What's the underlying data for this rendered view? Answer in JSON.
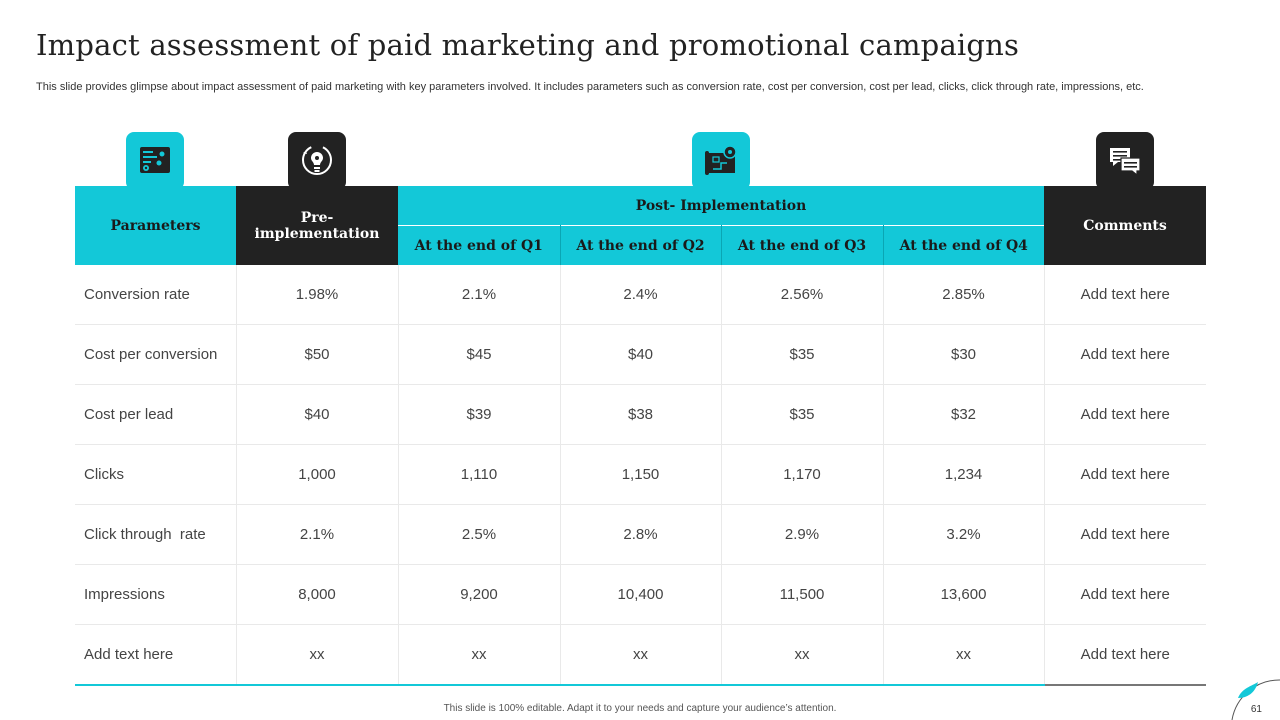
{
  "slide": {
    "title": "Impact assessment of paid marketing and promotional campaigns",
    "subtitle": "This slide provides glimpse about impact assessment of paid marketing with key parameters involved. It includes parameters such as conversion rate, cost per conversion, cost per lead, clicks, click through rate, impressions, etc.",
    "footer": "This slide is 100% editable.  Adapt it to your needs and capture your audience’s attention.",
    "page_number": "61"
  },
  "icons": [
    {
      "name": "settings-panel-icon",
      "color": "#13c8d8"
    },
    {
      "name": "lightbulb-gear-icon",
      "color": "#222222"
    },
    {
      "name": "blueprint-gear-icon",
      "color": "#13c8d8"
    },
    {
      "name": "chat-bubbles-icon",
      "color": "#222222"
    }
  ],
  "table": {
    "headers": {
      "parameters": "Parameters",
      "pre": "Pre-\nimplementation",
      "post": "Post- Implementation",
      "q1": "At the end of Q1",
      "q2": "At the end of Q2",
      "q3": "At the end of Q3",
      "q4": "At the end of Q4",
      "comments": "Comments"
    },
    "rows": [
      [
        "Conversion rate",
        "1.98%",
        "2.1%",
        "2.4%",
        "2.56%",
        "2.85%",
        "Add text here"
      ],
      [
        "Cost per conversion",
        "$50",
        "$45",
        "$40",
        "$35",
        "$30",
        "Add text here"
      ],
      [
        "Cost per lead",
        "$40",
        "$39",
        "$38",
        "$35",
        "$32",
        "Add text here"
      ],
      [
        "Clicks",
        "1,000",
        "1,110",
        "1,150",
        "1,170",
        "1,234",
        "Add text here"
      ],
      [
        "Click through  rate",
        "2.1%",
        "2.5%",
        "2.8%",
        "2.9%",
        "3.2%",
        "Add text here"
      ],
      [
        "Impressions",
        "8,000",
        "9,200",
        "10,400",
        "11,500",
        "13,600",
        "Add text here"
      ],
      [
        "Add text here",
        "xx",
        "xx",
        "xx",
        "xx",
        "xx",
        "Add text here"
      ]
    ]
  },
  "colors": {
    "accent": "#13c8d8",
    "dark": "#222222"
  }
}
